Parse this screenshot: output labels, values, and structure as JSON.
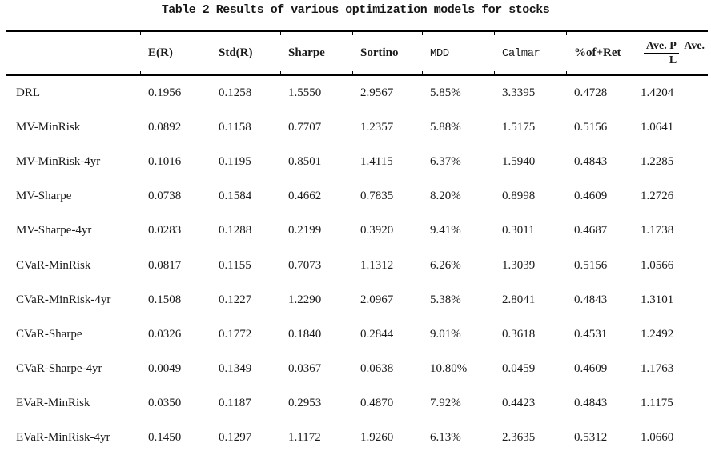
{
  "title": "Table 2 Results of various optimization models for stocks",
  "table": {
    "columns": [
      "E(R)",
      "Std(R)",
      "Sharpe",
      "Sortino",
      "MDD",
      "Calmar",
      "%of+Ret"
    ],
    "fraction_header": {
      "numerator": "Ave. P",
      "denominator": "Ave. L"
    },
    "rows": [
      {
        "model": "DRL",
        "values": [
          "0.1956",
          "0.1258",
          "1.5550",
          "2.9567",
          "5.85%",
          "3.3395",
          "0.4728",
          "1.4204"
        ]
      },
      {
        "model": "MV-MinRisk",
        "values": [
          "0.0892",
          "0.1158",
          "0.7707",
          "1.2357",
          "5.88%",
          "1.5175",
          "0.5156",
          "1.0641"
        ]
      },
      {
        "model": "MV-MinRisk-4yr",
        "values": [
          "0.1016",
          "0.1195",
          "0.8501",
          "1.4115",
          "6.37%",
          "1.5940",
          "0.4843",
          "1.2285"
        ]
      },
      {
        "model": "MV-Sharpe",
        "values": [
          "0.0738",
          "0.1584",
          "0.4662",
          "0.7835",
          "8.20%",
          "0.8998",
          "0.4609",
          "1.2726"
        ]
      },
      {
        "model": "MV-Sharpe-4yr",
        "values": [
          "0.0283",
          "0.1288",
          "0.2199",
          "0.3920",
          "9.41%",
          "0.3011",
          "0.4687",
          "1.1738"
        ]
      },
      {
        "model": "CVaR-MinRisk",
        "values": [
          "0.0817",
          "0.1155",
          "0.7073",
          "1.1312",
          "6.26%",
          "1.3039",
          "0.5156",
          "1.0566"
        ]
      },
      {
        "model": "CVaR-MinRisk-4yr",
        "values": [
          "0.1508",
          "0.1227",
          "1.2290",
          "2.0967",
          "5.38%",
          "2.8041",
          "0.4843",
          "1.3101"
        ]
      },
      {
        "model": "CVaR-Sharpe",
        "values": [
          "0.0326",
          "0.1772",
          "0.1840",
          "0.2844",
          "9.01%",
          "0.3618",
          "0.4531",
          "1.2492"
        ]
      },
      {
        "model": "CVaR-Sharpe-4yr",
        "values": [
          "0.0049",
          "0.1349",
          "0.0367",
          "0.0638",
          "10.80%",
          "0.0459",
          "0.4609",
          "1.1763"
        ]
      },
      {
        "model": "EVaR-MinRisk",
        "values": [
          "0.0350",
          "0.1187",
          "0.2953",
          "0.4870",
          "7.92%",
          "0.4423",
          "0.4843",
          "1.1175"
        ]
      },
      {
        "model": "EVaR-MinRisk-4yr",
        "values": [
          "0.1450",
          "0.1297",
          "1.1172",
          "1.9260",
          "6.13%",
          "2.3635",
          "0.5312",
          "1.0660"
        ]
      }
    ]
  },
  "colors": {
    "text": "#1a1a1a",
    "rule": "#000000",
    "background": "#ffffff"
  }
}
